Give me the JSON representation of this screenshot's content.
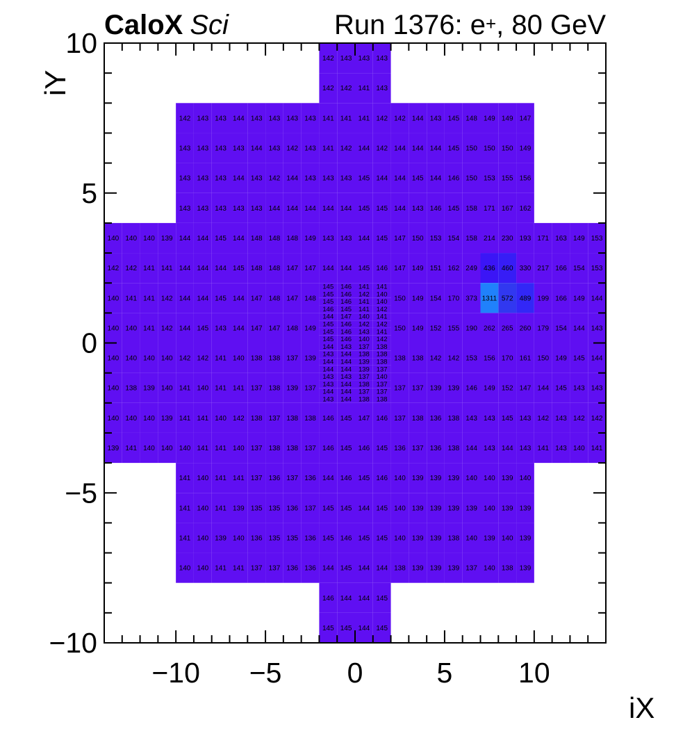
{
  "header": {
    "experiment": "CaloX",
    "detector": "Sci",
    "run_prefix": "Run 1376: e",
    "run_sup": "+",
    "run_suffix": ", 80 GeV"
  },
  "axes": {
    "x": {
      "title": "iX",
      "min": -14,
      "max": 14,
      "tick_values": [
        -10,
        -5,
        0,
        5,
        10
      ],
      "tick_labels": [
        "−10",
        "−5",
        "0",
        "5",
        "10"
      ]
    },
    "y": {
      "title": "iY",
      "min": -10,
      "max": 10,
      "tick_values": [
        10,
        5,
        0,
        -5,
        -10
      ],
      "tick_labels": [
        "10",
        "5",
        "0",
        "−5",
        "−10"
      ]
    }
  },
  "chart_data": {
    "type": "heatmap",
    "title": "Run 1376: e+, 80 GeV",
    "xlabel": "iX",
    "ylabel": "iY",
    "xlim": [
      -14,
      14
    ],
    "ylim": [
      -10,
      10
    ],
    "zmin_observed": 135,
    "zmax_observed": 1311,
    "grid": false,
    "legend": "none",
    "base_cell_color": "#5f0ff2",
    "color_scale": [
      {
        "v": 135,
        "c": "#5f0ff2"
      },
      {
        "v": 400,
        "c": "#5f0ff2"
      },
      {
        "v": 436,
        "c": "#3b15f6"
      },
      {
        "v": 489,
        "c": "#3227f7"
      },
      {
        "v": 572,
        "c": "#3138f0"
      },
      {
        "v": 1311,
        "c": "#2081fb"
      }
    ],
    "rows": [
      {
        "iy": 9,
        "x0": -2,
        "v": [
          142,
          143,
          143,
          143
        ]
      },
      {
        "iy": 8,
        "x0": -2,
        "v": [
          142,
          142,
          141,
          143
        ]
      },
      {
        "iy": 7,
        "x0": -10,
        "v": [
          142,
          143,
          143,
          144,
          143,
          143,
          143,
          143,
          141,
          141,
          141,
          142,
          142,
          144,
          143,
          145,
          148,
          149,
          149,
          147
        ]
      },
      {
        "iy": 6,
        "x0": -10,
        "v": [
          143,
          143,
          143,
          143,
          144,
          143,
          142,
          143,
          141,
          142,
          144,
          142,
          144,
          144,
          144,
          145,
          150,
          150,
          150,
          149
        ]
      },
      {
        "iy": 5,
        "x0": -10,
        "v": [
          143,
          143,
          143,
          144,
          143,
          142,
          144,
          143,
          143,
          143,
          145,
          144,
          144,
          145,
          144,
          146,
          150,
          153,
          155,
          156
        ]
      },
      {
        "iy": 4,
        "x0": -10,
        "v": [
          143,
          143,
          143,
          143,
          143,
          144,
          144,
          144,
          144,
          144,
          145,
          145,
          144,
          143,
          146,
          145,
          158,
          171,
          167,
          162
        ]
      },
      {
        "iy": 3,
        "x0": -14,
        "v": [
          140,
          140,
          140,
          139,
          144,
          144,
          145,
          144,
          148,
          148,
          148,
          149,
          143,
          143,
          144,
          145,
          147,
          150,
          153,
          154,
          158,
          214,
          230,
          193,
          171,
          163,
          149,
          153
        ]
      },
      {
        "iy": 2,
        "x0": -14,
        "v": [
          142,
          142,
          141,
          141,
          144,
          144,
          144,
          145,
          148,
          148,
          147,
          147,
          144,
          144,
          145,
          146,
          147,
          149,
          151,
          162,
          249,
          436,
          460,
          330,
          217,
          166,
          154,
          153
        ]
      },
      {
        "iy": 1,
        "x0": -14,
        "v": [
          140,
          141,
          141,
          142,
          144,
          144,
          145,
          144,
          147,
          148,
          147,
          148
        ]
      },
      {
        "iy": 1,
        "x0": 2,
        "v": [
          150,
          149,
          154,
          170,
          373,
          1311,
          572,
          489,
          199,
          166,
          149,
          144
        ]
      },
      {
        "iy": 0,
        "x0": -14,
        "v": [
          140,
          140,
          141,
          142,
          144,
          145,
          143,
          144,
          147,
          147,
          148,
          149
        ]
      },
      {
        "iy": 0,
        "x0": 2,
        "v": [
          150,
          149,
          152,
          155,
          190,
          262,
          265,
          260,
          179,
          154,
          144,
          143
        ]
      },
      {
        "iy": -1,
        "x0": -14,
        "v": [
          140,
          140,
          140,
          140,
          142,
          142,
          141,
          140,
          138,
          138,
          137,
          139
        ]
      },
      {
        "iy": -1,
        "x0": 2,
        "v": [
          138,
          138,
          142,
          142,
          153,
          156,
          170,
          161,
          150,
          149,
          145,
          144
        ]
      },
      {
        "iy": -2,
        "x0": -14,
        "v": [
          140,
          138,
          139,
          140,
          141,
          140,
          141,
          141,
          137,
          138,
          139,
          137
        ]
      },
      {
        "iy": -2,
        "x0": 2,
        "v": [
          137,
          137,
          139,
          139,
          146,
          149,
          152,
          147,
          144,
          145,
          143,
          143
        ]
      },
      {
        "iy": -3,
        "x0": -14,
        "v": [
          140,
          140,
          140,
          139,
          141,
          141,
          140,
          142,
          138,
          137,
          138,
          138,
          146,
          145,
          147,
          146,
          137,
          138,
          136,
          138,
          143,
          143,
          145,
          143,
          142,
          143,
          142,
          142
        ]
      },
      {
        "iy": -4,
        "x0": -14,
        "v": [
          139,
          141,
          140,
          140,
          140,
          141,
          141,
          140,
          137,
          138,
          138,
          137,
          146,
          145,
          146,
          145,
          136,
          137,
          136,
          138,
          144,
          143,
          144,
          143,
          141,
          143,
          140,
          141
        ]
      },
      {
        "iy": -5,
        "x0": -10,
        "v": [
          141,
          140,
          141,
          141,
          137,
          136,
          137,
          136,
          144,
          146,
          145,
          146,
          140,
          139,
          139,
          139,
          140,
          140,
          139,
          140
        ]
      },
      {
        "iy": -6,
        "x0": -10,
        "v": [
          141,
          140,
          141,
          139,
          135,
          135,
          136,
          137,
          145,
          145,
          144,
          145,
          140,
          139,
          139,
          139,
          139,
          140,
          139,
          139
        ]
      },
      {
        "iy": -7,
        "x0": -10,
        "v": [
          141,
          140,
          139,
          140,
          136,
          135,
          135,
          136,
          145,
          146,
          145,
          145,
          140,
          139,
          139,
          138,
          140,
          139,
          140,
          139
        ]
      },
      {
        "iy": -8,
        "x0": -10,
        "v": [
          140,
          140,
          141,
          141,
          137,
          137,
          136,
          136,
          144,
          145,
          144,
          144,
          138,
          139,
          139,
          139,
          137,
          140,
          138,
          139
        ]
      },
      {
        "iy": -9,
        "x0": -2,
        "v": [
          146,
          144,
          144,
          145
        ]
      },
      {
        "iy": -10,
        "x0": -2,
        "v": [
          145,
          145,
          144,
          145
        ]
      }
    ],
    "fine_region": {
      "x0": -2,
      "y_top": 2,
      "cols": 4,
      "col_w": 1,
      "row_h": 0.25,
      "rows": [
        [
          145,
          146,
          141,
          141
        ],
        [
          145,
          146,
          142,
          140
        ],
        [
          145,
          146,
          141,
          140
        ],
        [
          146,
          145,
          141,
          142
        ],
        [
          144,
          147,
          140,
          141
        ],
        [
          145,
          146,
          142,
          142
        ],
        [
          145,
          146,
          143,
          141
        ],
        [
          145,
          146,
          140,
          142
        ],
        [
          144,
          143,
          137,
          138
        ],
        [
          143,
          144,
          138,
          138
        ],
        [
          144,
          144,
          139,
          138
        ],
        [
          144,
          144,
          139,
          137
        ],
        [
          143,
          143,
          137,
          140
        ],
        [
          143,
          144,
          138,
          137
        ],
        [
          144,
          144,
          137,
          137
        ],
        [
          143,
          144,
          138,
          138
        ]
      ]
    }
  }
}
